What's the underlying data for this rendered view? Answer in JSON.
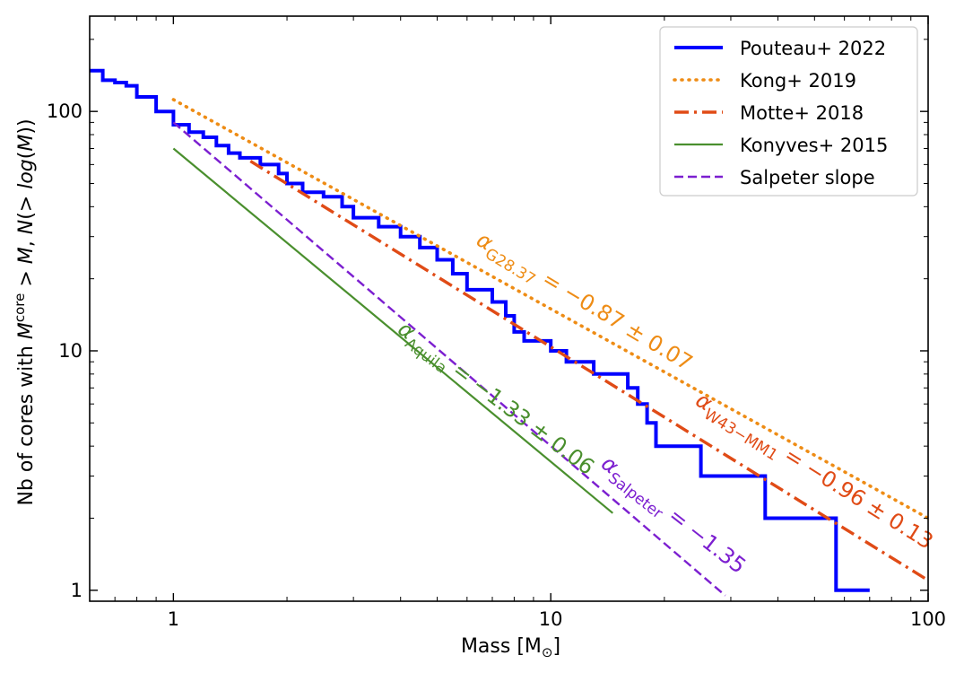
{
  "chart_data": {
    "type": "line",
    "xlabel": "Mass [M⊙]",
    "ylabel": "Nb of cores with M^core > M, N(> log(M))",
    "xscale": "log",
    "yscale": "log",
    "xlim": [
      0.6,
      100
    ],
    "ylim": [
      0.9,
      250
    ],
    "x_ticks": [
      1,
      10,
      100
    ],
    "x_tick_labels": [
      "1",
      "10",
      "100"
    ],
    "y_ticks": [
      1,
      10,
      100
    ],
    "y_tick_labels": [
      "1",
      "10",
      "100"
    ],
    "grid": false,
    "legend_position": "top-right",
    "series": [
      {
        "name": "Pouteau+ 2022",
        "style": "solid-step",
        "color": "#0000ff",
        "points": [
          [
            0.6,
            148
          ],
          [
            0.65,
            135
          ],
          [
            0.7,
            132
          ],
          [
            0.75,
            128
          ],
          [
            0.8,
            115
          ],
          [
            0.9,
            100
          ],
          [
            1.0,
            88
          ],
          [
            1.1,
            82
          ],
          [
            1.2,
            78
          ],
          [
            1.3,
            72
          ],
          [
            1.4,
            67
          ],
          [
            1.5,
            64
          ],
          [
            1.7,
            60
          ],
          [
            1.9,
            55
          ],
          [
            2.0,
            50
          ],
          [
            2.2,
            46
          ],
          [
            2.5,
            44
          ],
          [
            2.8,
            40
          ],
          [
            3.0,
            36
          ],
          [
            3.5,
            33
          ],
          [
            4.0,
            30
          ],
          [
            4.5,
            27
          ],
          [
            5.0,
            24
          ],
          [
            5.5,
            21
          ],
          [
            6.0,
            18
          ],
          [
            7.0,
            16
          ],
          [
            7.6,
            14
          ],
          [
            8.0,
            12
          ],
          [
            8.5,
            11
          ],
          [
            10.0,
            10
          ],
          [
            11.0,
            9
          ],
          [
            13.0,
            8
          ],
          [
            16.0,
            7
          ],
          [
            17.0,
            6
          ],
          [
            18.0,
            5
          ],
          [
            19.0,
            4
          ],
          [
            25.0,
            3
          ],
          [
            37.0,
            2
          ],
          [
            57.0,
            1
          ],
          [
            70.0,
            1
          ]
        ]
      },
      {
        "name": "Kong+ 2019",
        "style": "dotted",
        "color": "#ee8c15",
        "points": [
          [
            1,
            112
          ],
          [
            100,
            2.0
          ]
        ]
      },
      {
        "name": "Motte+ 2018",
        "style": "dashdot",
        "color": "#e04b16",
        "points": [
          [
            1.6,
            62
          ],
          [
            100,
            1.1
          ]
        ]
      },
      {
        "name": "Konyves+ 2015",
        "style": "solid",
        "color": "#4a8f2e",
        "points": [
          [
            1,
            70
          ],
          [
            14.6,
            2.1
          ]
        ]
      },
      {
        "name": "Salpeter slope",
        "style": "dashed",
        "color": "#7c1fd0",
        "points": [
          [
            1,
            90
          ],
          [
            29,
            0.95
          ]
        ]
      }
    ],
    "annotations": [
      {
        "base": "α",
        "sub": "G28.37",
        "rest": " = −0.87 ± 0.07",
        "color": "#ee8c15",
        "x": 6.3,
        "y": 28,
        "rotation": 31
      },
      {
        "base": "α",
        "sub": "W43−MM1",
        "rest": " = −0.96 ± 0.13",
        "color": "#e04b16",
        "x": 24,
        "y": 6.0,
        "rotation": 32
      },
      {
        "base": "α",
        "sub": "Aquila",
        "rest": " = −1.33 ± 0.06",
        "color": "#4a8f2e",
        "x": 3.9,
        "y": 12,
        "rotation": 37
      },
      {
        "base": "α",
        "sub": "Salpeter",
        "rest": " = −1.35",
        "color": "#7c1fd0",
        "x": 13.5,
        "y": 3.3,
        "rotation": 38
      }
    ]
  }
}
